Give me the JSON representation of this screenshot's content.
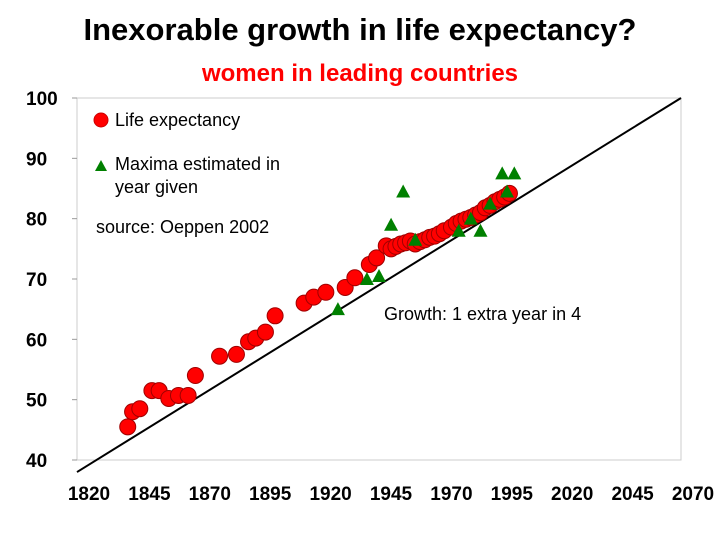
{
  "chart_data": {
    "type": "scatter",
    "title": "Inexorable growth in life expectancy?",
    "subtitle": "women in leading countries",
    "xlim": [
      1820,
      2070
    ],
    "ylim": [
      40,
      100
    ],
    "x_ticks": [
      "1820",
      "1845",
      "1870",
      "1895",
      "1920",
      "1945",
      "1970",
      "1995",
      "2020",
      "2045",
      "2070"
    ],
    "y_ticks": [
      "40",
      "50",
      "60",
      "70",
      "80",
      "90",
      "100"
    ],
    "series": [
      {
        "name": "Life expectancy",
        "marker": "circle",
        "color": "#ff0000",
        "x": [
          1841,
          1843,
          1846,
          1851,
          1854,
          1858,
          1862,
          1866,
          1869,
          1879,
          1886,
          1891,
          1894,
          1898,
          1902,
          1914,
          1918,
          1923,
          1931,
          1935,
          1941,
          1944,
          1948,
          1950,
          1952,
          1954,
          1956,
          1958,
          1960,
          1962,
          1964,
          1966,
          1968,
          1970,
          1972,
          1975,
          1977,
          1979,
          1981,
          1983,
          1985,
          1987,
          1989,
          1991,
          1993,
          1995,
          1997,
          1999
        ],
        "y": [
          45.5,
          48,
          48.5,
          51.5,
          51.5,
          50.2,
          50.7,
          50.7,
          54,
          57.2,
          57.5,
          59.6,
          60.2,
          61.2,
          63.9,
          66,
          67,
          67.8,
          68.6,
          70.2,
          72.4,
          73.5,
          75.5,
          75,
          75.4,
          75.8,
          76,
          76.3,
          75.8,
          76.2,
          76.5,
          76.9,
          77.1,
          77.5,
          78,
          78.6,
          79.2,
          79.6,
          79.9,
          80.2,
          80.6,
          81,
          81.8,
          82.2,
          82.8,
          83.2,
          83.6,
          84.2
        ]
      },
      {
        "name": "Maxima estimated in year given",
        "marker": "triangle",
        "color": "#008000",
        "x": [
          1928,
          1940,
          1945,
          1950,
          1955,
          1960,
          1978,
          1983,
          1987,
          1991,
          1996,
          1998,
          2001
        ],
        "y": [
          65,
          70,
          70.5,
          79,
          84.5,
          76.5,
          78,
          80,
          78,
          82.5,
          87.5,
          84.5,
          87.5
        ]
      }
    ],
    "trendline": {
      "label": "Growth: 1 extra year in 4",
      "x": [
        1820,
        2070
      ],
      "y": [
        38,
        100
      ]
    },
    "annotations": {
      "source": "source: Oeppen 2002"
    },
    "legend": {
      "position": "top-left",
      "items": [
        "Life expectancy",
        "Maxima estimated in",
        "year given"
      ]
    }
  }
}
